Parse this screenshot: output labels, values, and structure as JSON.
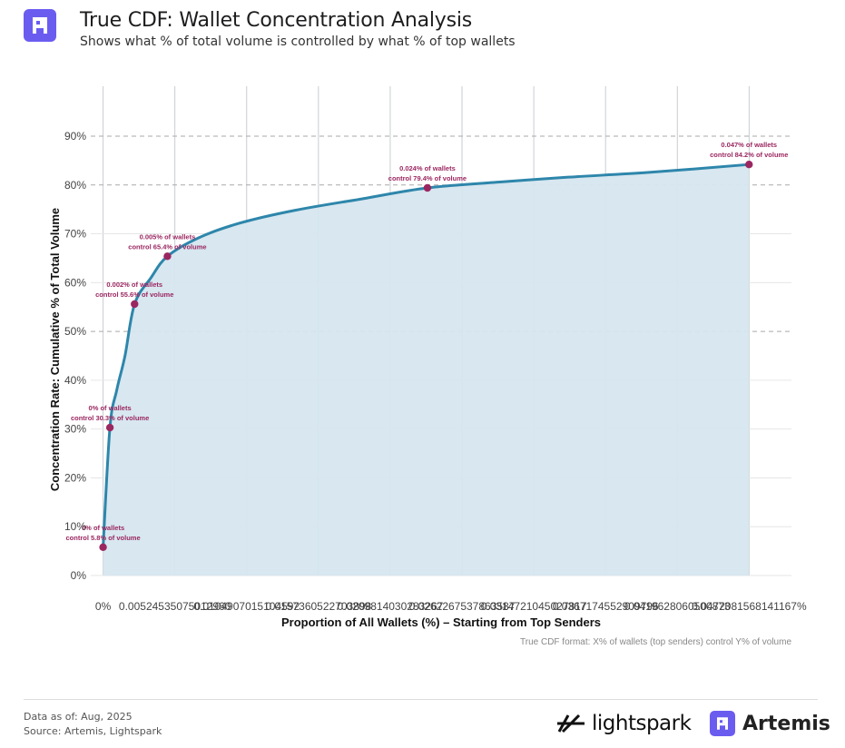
{
  "header": {
    "title": "True CDF: Wallet Concentration Analysis",
    "subtitle": "Shows what % of total volume is controlled by what % of top wallets",
    "logo_icon": "artemis-logo-icon"
  },
  "colors": {
    "curve": "#2e86ab",
    "fill": "#d6e6ef",
    "marker": "#9b2761",
    "annotation": "#9b2761",
    "brand": "#6b5cf0"
  },
  "chart_data": {
    "type": "area",
    "title": "",
    "xlabel": "Proportion of All Wallets (%) – Starting from Top Senders",
    "ylabel": "Concentration Rate: Cumulative % of Total Volume",
    "caption": "True CDF format: X% of wallets (top senders) control Y% of volume",
    "ylim": [
      0,
      90
    ],
    "xlim": [
      -0.0009,
      0.0503
    ],
    "y_ticks": [
      "0%",
      "10%",
      "20%",
      "30%",
      "40%",
      "50%",
      "60%",
      "70%",
      "80%",
      "90%"
    ],
    "x_tick_labels": [
      "0%",
      "0.00524535075012960",
      "0.0104907015104592",
      "0.0157360522703898",
      "0.0209814030283267",
      "0.0262267537863587",
      "0.0314721045027817",
      "0.0367174552909796",
      "0.0419628060500873",
      "0.0472081568141167%"
    ],
    "x_tick_values": [
      0,
      0.00524535,
      0.0104907,
      0.01573605,
      0.0209814,
      0.02622675,
      0.0314721,
      0.03671745,
      0.0419628,
      0.04720815
    ],
    "dashed_gridlines_y": [
      50,
      80,
      90
    ],
    "grid": true,
    "series": [
      {
        "points": [
          {
            "x": 0.0,
            "y": 5.8
          },
          {
            "x": 0.0005,
            "y": 30.3
          },
          {
            "x": 0.001,
            "y": 38.0
          },
          {
            "x": 0.0016,
            "y": 45.0
          },
          {
            "x": 0.0023,
            "y": 55.6
          },
          {
            "x": 0.0035,
            "y": 61.0
          },
          {
            "x": 0.0047,
            "y": 65.4
          },
          {
            "x": 0.007,
            "y": 69.2
          },
          {
            "x": 0.01,
            "y": 72.2
          },
          {
            "x": 0.014,
            "y": 74.8
          },
          {
            "x": 0.019,
            "y": 77.2
          },
          {
            "x": 0.0237,
            "y": 79.4
          },
          {
            "x": 0.029,
            "y": 80.6
          },
          {
            "x": 0.034,
            "y": 81.6
          },
          {
            "x": 0.04,
            "y": 82.6
          },
          {
            "x": 0.0472,
            "y": 84.2
          }
        ]
      }
    ],
    "annotations": [
      {
        "x": 0.0,
        "y": 5.8,
        "line1": "0% of wallets",
        "line2": "control 5.8% of volume"
      },
      {
        "x": 0.0005,
        "y": 30.3,
        "line1": "0% of wallets",
        "line2": "control 30.3% of volume"
      },
      {
        "x": 0.0023,
        "y": 55.6,
        "line1": "0.002% of wallets",
        "line2": "control 55.6% of volume"
      },
      {
        "x": 0.0047,
        "y": 65.4,
        "line1": "0.005% of wallets",
        "line2": "control 65.4% of volume"
      },
      {
        "x": 0.0237,
        "y": 79.4,
        "line1": "0.024% of wallets",
        "line2": "control 79.4% of volume"
      },
      {
        "x": 0.0472,
        "y": 84.2,
        "line1": "0.047% of wallets",
        "line2": "control 84.2% of volume"
      }
    ]
  },
  "footer": {
    "data_as_of": "Data as of: Aug, 2025",
    "source": "Source: Artemis, Lightspark",
    "brand_lightspark": "lightspark",
    "brand_artemis": "Artemis"
  }
}
